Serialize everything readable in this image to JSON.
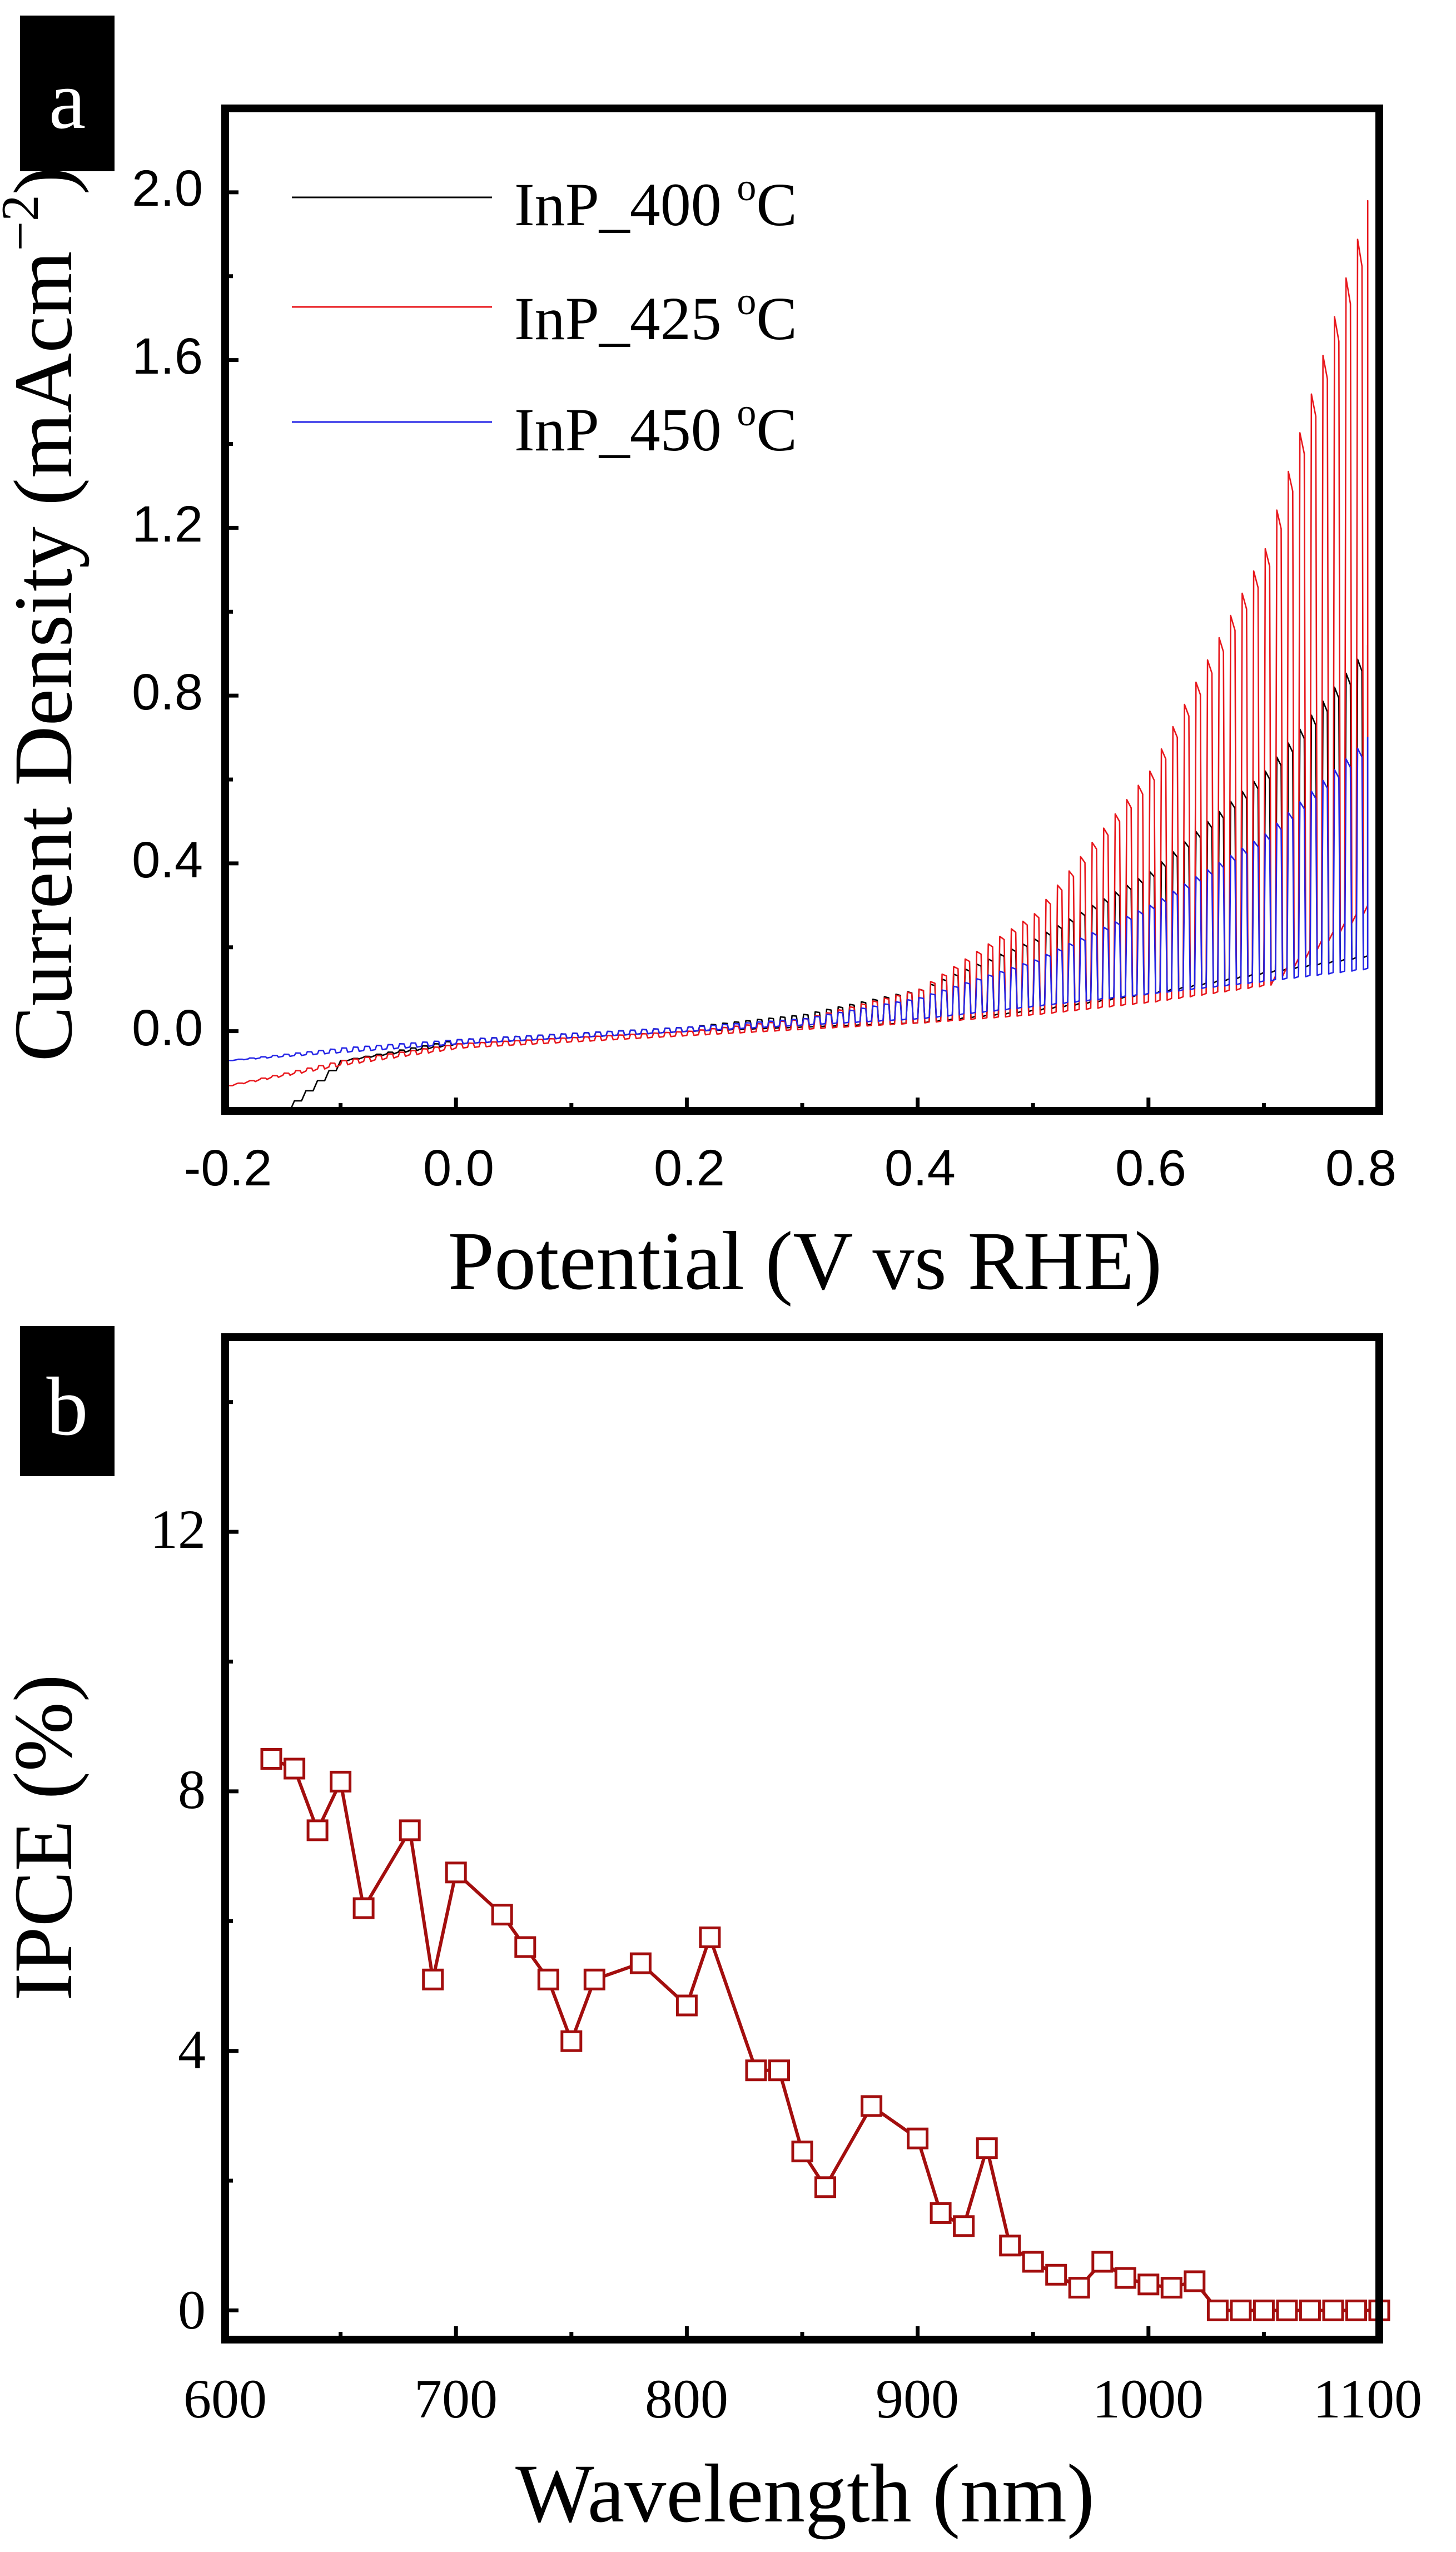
{
  "chart_data": [
    {
      "panel_label": "a",
      "type": "line",
      "title": "",
      "xlabel": "Potential (V vs RHE)",
      "ylabel": "Current Density (mAcm",
      "ylabel_sup": "−2",
      "ylabel_close": ")",
      "xlim": [
        -0.2,
        0.8
      ],
      "ylim": [
        -0.19,
        2.2
      ],
      "xticks": [
        -0.2,
        0.0,
        0.2,
        0.4,
        0.6,
        0.8
      ],
      "xtick_labels": [
        "-0.2",
        "0.0",
        "0.2",
        "0.4",
        "0.6",
        "0.8"
      ],
      "yticks": [
        0.0,
        0.4,
        0.8,
        1.2,
        1.6,
        2.0
      ],
      "ytick_labels": [
        "0.0",
        "0.4",
        "0.8",
        "1.2",
        "1.6",
        "2.0"
      ],
      "legend_position": "top-left",
      "chopped_illumination": true,
      "series": [
        {
          "name": "InP_400",
          "legend_label": "InP_400 ",
          "legend_sup": "o",
          "legend_suffix": "C",
          "color": "#000000",
          "dark": [
            [
              -0.15,
              -0.19
            ],
            [
              -0.1,
              -0.07
            ],
            [
              0.0,
              -0.03
            ],
            [
              0.2,
              0.0
            ],
            [
              0.4,
              0.02
            ],
            [
              0.5,
              0.05
            ],
            [
              0.6,
              0.09
            ],
            [
              0.7,
              0.14
            ],
            [
              0.79,
              0.18
            ]
          ],
          "light": [
            [
              -0.15,
              -0.19
            ],
            [
              -0.1,
              -0.07
            ],
            [
              0.0,
              -0.02
            ],
            [
              0.2,
              0.01
            ],
            [
              0.3,
              0.04
            ],
            [
              0.4,
              0.1
            ],
            [
              0.5,
              0.22
            ],
            [
              0.6,
              0.38
            ],
            [
              0.7,
              0.62
            ],
            [
              0.79,
              0.92
            ]
          ]
        },
        {
          "name": "InP_425",
          "legend_label": "InP_425 ",
          "legend_sup": "o",
          "legend_suffix": "C",
          "color": "#e8171c",
          "dark": [
            [
              -0.2,
              -0.13
            ],
            [
              -0.1,
              -0.08
            ],
            [
              0.0,
              -0.04
            ],
            [
              0.2,
              -0.01
            ],
            [
              0.4,
              0.02
            ],
            [
              0.5,
              0.04
            ],
            [
              0.6,
              0.07
            ],
            [
              0.7,
              0.11
            ],
            [
              0.79,
              0.3
            ]
          ],
          "light": [
            [
              -0.2,
              -0.13
            ],
            [
              -0.1,
              -0.07
            ],
            [
              0.0,
              -0.03
            ],
            [
              0.2,
              0.0
            ],
            [
              0.3,
              0.03
            ],
            [
              0.4,
              0.1
            ],
            [
              0.5,
              0.28
            ],
            [
              0.6,
              0.62
            ],
            [
              0.7,
              1.15
            ],
            [
              0.79,
              1.98
            ]
          ]
        },
        {
          "name": "InP_450",
          "legend_label": "InP_450 ",
          "legend_sup": "o",
          "legend_suffix": "C",
          "color": "#2424e6",
          "dark": [
            [
              -0.2,
              -0.07
            ],
            [
              -0.1,
              -0.05
            ],
            [
              0.0,
              -0.03
            ],
            [
              0.2,
              0.0
            ],
            [
              0.4,
              0.03
            ],
            [
              0.5,
              0.06
            ],
            [
              0.6,
              0.09
            ],
            [
              0.7,
              0.12
            ],
            [
              0.79,
              0.15
            ]
          ],
          "light": [
            [
              -0.2,
              -0.07
            ],
            [
              -0.1,
              -0.04
            ],
            [
              0.0,
              -0.02
            ],
            [
              0.2,
              0.01
            ],
            [
              0.3,
              0.03
            ],
            [
              0.4,
              0.08
            ],
            [
              0.5,
              0.17
            ],
            [
              0.6,
              0.3
            ],
            [
              0.7,
              0.47
            ],
            [
              0.79,
              0.7
            ]
          ]
        }
      ]
    },
    {
      "panel_label": "b",
      "type": "line",
      "title": "",
      "xlabel": "Wavelength (nm)",
      "ylabel": "IPCE (%)",
      "xlim": [
        600,
        1100
      ],
      "ylim": [
        -0.45,
        15.0
      ],
      "xticks": [
        600,
        700,
        800,
        900,
        1000,
        1100
      ],
      "xtick_labels": [
        "600",
        "700",
        "800",
        "900",
        "1000",
        "1100"
      ],
      "yticks": [
        0,
        4,
        8,
        12
      ],
      "ytick_labels": [
        "0",
        "4",
        "8",
        "12"
      ],
      "marker": "open-square",
      "series": [
        {
          "name": "IPCE",
          "color": "#a30e0e",
          "x": [
            620,
            630,
            640,
            650,
            660,
            680,
            690,
            700,
            720,
            730,
            740,
            750,
            760,
            780,
            800,
            810,
            830,
            840,
            850,
            860,
            880,
            900,
            910,
            920,
            930,
            940,
            950,
            960,
            970,
            980,
            990,
            1000,
            1010,
            1020,
            1030,
            1040,
            1050,
            1060,
            1070,
            1080,
            1090,
            1100
          ],
          "y": [
            8.5,
            8.35,
            7.4,
            8.15,
            6.2,
            7.4,
            5.1,
            6.75,
            6.1,
            5.6,
            5.1,
            4.15,
            5.1,
            5.35,
            4.7,
            5.75,
            3.7,
            3.7,
            2.45,
            1.9,
            3.15,
            2.65,
            1.5,
            1.3,
            2.5,
            1.0,
            0.75,
            0.55,
            0.35,
            0.75,
            0.5,
            0.4,
            0.35,
            0.45,
            0.0,
            0.0,
            0.0,
            0.0,
            0.0,
            0.0,
            0.0,
            0.0
          ]
        }
      ]
    }
  ]
}
